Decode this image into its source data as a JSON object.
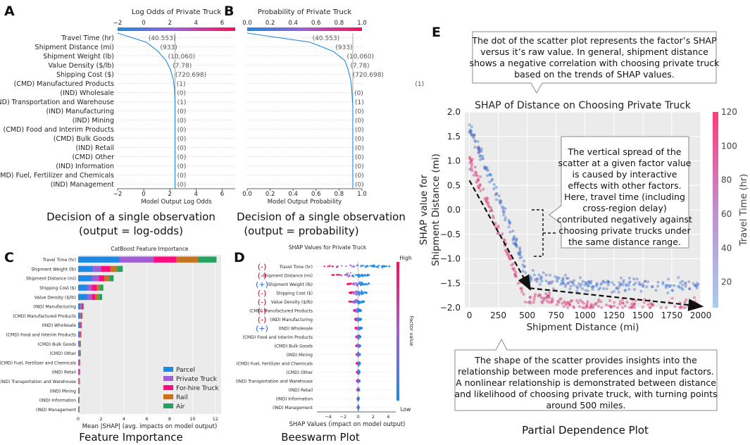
{
  "panels": {
    "A": {
      "letter": "A",
      "caption": [
        "Decision of a single observation",
        "(output = log-odds)"
      ]
    },
    "B": {
      "letter": "B",
      "caption": [
        "Decision of a single observation",
        "(output = probability)"
      ]
    },
    "C": {
      "letter": "C",
      "caption": [
        "Feature Importance"
      ]
    },
    "D": {
      "letter": "D",
      "caption": [
        "Beeswarm Plot"
      ]
    },
    "E": {
      "letter": "E",
      "caption": [
        "Partial Dependence Plot"
      ]
    }
  },
  "annotations": {
    "top": [
      "The dot of the scatter plot represents the factor’s SHAP",
      "versus it’s raw value. In general, shipment distance",
      "shows a negative correlation with choosing private truck",
      "based on the trends of SHAP values."
    ],
    "middle": [
      "The vertical spread of the",
      "scatter at a given factor value",
      "is caused by interactive",
      "effects with other factors.",
      "Here, travel time (including",
      "cross-region delay)",
      "contributed negatively against",
      "choosing private trucks under",
      "the same distance range."
    ],
    "bottom": [
      "The shape of the scatter provides insights into the",
      "relationship between mode preferences and input factors.",
      "A nonlinear relationship is demonstrated between distance",
      "and likelihood of choosing private truck, with turning points",
      "around 500 miles."
    ]
  },
  "colors": {
    "blue": "#1e88e5",
    "magenta": "#ff0d57",
    "parcel": "#1e88e5",
    "private_truck": "#a05fd4",
    "forhire_truck": "#ff0d7f",
    "rail": "#c7721f",
    "air": "#27a060",
    "grid_bg": "#ebebeb",
    "text": "#222222",
    "sign_neg": "#d0021b",
    "sign_pos": "#1a5fd0"
  },
  "chart_data": [
    {
      "id": "A",
      "type": "line",
      "title": "Log Odds of Private Truck",
      "xlabel": "Model Output Log Odds",
      "xlim": [
        -2,
        7
      ],
      "xticks": [
        -2,
        0,
        2,
        4,
        6
      ],
      "features": [
        "Travel Time (hr)",
        "Shipment Distance (mi)",
        "Shipment Weight (lb)",
        "Value Density ($/lb)",
        "Shipping Cost ($)",
        "(CMD) Manufactured Products",
        "(IND) Wholesale",
        "(IND) Transportation and Warehouse",
        "(IND) Manufacturing",
        "(IND) Mining",
        "(CMD) Food and Interim Products",
        "(CMD) Bulk Goods",
        "(IND) Retail",
        "(CMD) Other",
        "(IND) Information",
        "(CMD) Fuel, Fertilizer and Chemicals",
        "(IND) Management"
      ],
      "feature_values": [
        "(40.553)",
        "(933)",
        "(10,060)",
        "(7.78)",
        "(720.698)",
        "(1)",
        "(0)",
        "(1)",
        "(0)",
        "(0)",
        "(0)",
        "(0)",
        "(0)",
        "(0)",
        "(0)",
        "(0)",
        "(0)"
      ],
      "path": [
        -2.0,
        0.2,
        1.1,
        1.7,
        2.05,
        2.25,
        2.35,
        2.38,
        2.4,
        2.4,
        2.4,
        2.4,
        2.4,
        2.4,
        2.4,
        2.4,
        2.4,
        2.4
      ],
      "base": 2.4
    },
    {
      "id": "B",
      "type": "line",
      "title": "Probability of Private Truck",
      "xlabel": "Model Output Probability",
      "xlim": [
        0,
        1
      ],
      "xticks": [
        0.0,
        0.2,
        0.4,
        0.6,
        0.8,
        1.0
      ],
      "features": [
        "Travel Time (hr)",
        "Shipment Distance (mi)",
        "Shipment Weight (lb)",
        "Value Density ($/lb)",
        "Shipping Cost ($)",
        "(CMD) Manufactured Products",
        "(IND) Wholesale",
        "(IND) Transportation and Warehouse",
        "(IND) Manufacturing",
        "(IND) Mining",
        "(CMD) Food and Interim Products",
        "(CMD) Bulk Goods",
        "(IND) Retail",
        "(CMD) Other",
        "(IND) Information",
        "(CMD) Fuel, Fertilizer and Chemicals",
        "(IND) Management"
      ],
      "feature_values": [
        "(40.553)",
        "(933)",
        "(10,060)",
        "(7.78)",
        "(720.698)",
        "(1)",
        "(0)",
        "(1)",
        "(0)",
        "(0)",
        "(0)",
        "(0)",
        "(0)",
        "(0)",
        "(0)",
        "(0)",
        "(0)"
      ],
      "path": [
        0.0,
        0.55,
        0.75,
        0.85,
        0.88,
        0.9,
        0.91,
        0.915,
        0.92,
        0.92,
        0.92,
        0.92,
        0.92,
        0.92,
        0.92,
        0.92,
        0.92,
        0.92
      ],
      "base": 0.92
    },
    {
      "id": "C",
      "type": "bar",
      "title": "CatBoost Feature Importance",
      "xlabel": "Mean |SHAP| (avg. impacts on model output)",
      "xlim": [
        0,
        12.5
      ],
      "xticks": [
        0,
        2,
        4,
        6,
        8,
        10,
        12
      ],
      "categories": [
        "Travel Time (hr)",
        "Shipment Weight (lb)",
        "Shipment Distance (mi)",
        "Shipping Cost ($)",
        "Value Density ($/lb)",
        "(IND) Manufacturing",
        "(CMD) Manufactured Products",
        "(IND) Wholesale",
        "(CMD) Food and Interim Products",
        "(CMD) Bulk Goods",
        "(CMD) Other",
        "(CMD) Fuel, Fertilizer and Chemicals",
        "(IND) Retail",
        "(IND) Transportation and Warehouse",
        "(IND) Mining",
        "(IND) Information",
        "(IND) Management"
      ],
      "series": [
        {
          "name": "Parcel",
          "values": [
            3.6,
            1.3,
            1.2,
            0.8,
            0.8,
            0.2,
            0.15,
            0.12,
            0.1,
            0.08,
            0.08,
            0.06,
            0.06,
            0.05,
            0.04,
            0.03,
            0.03
          ]
        },
        {
          "name": "Private Truck",
          "values": [
            3.0,
            0.7,
            0.6,
            0.4,
            0.4,
            0.1,
            0.08,
            0.07,
            0.06,
            0.05,
            0.05,
            0.04,
            0.03,
            0.03,
            0.02,
            0.02,
            0.02
          ]
        },
        {
          "name": "For-hire Truck",
          "values": [
            2.0,
            0.8,
            0.5,
            0.4,
            0.3,
            0.1,
            0.08,
            0.08,
            0.06,
            0.05,
            0.05,
            0.04,
            0.03,
            0.03,
            0.02,
            0.02,
            0.02
          ]
        },
        {
          "name": "Rail",
          "values": [
            1.9,
            0.6,
            0.4,
            0.3,
            0.3,
            0.05,
            0.04,
            0.03,
            0.03,
            0.03,
            0.02,
            0.02,
            0.02,
            0.01,
            0.01,
            0.01,
            0.01
          ]
        },
        {
          "name": "Air",
          "values": [
            1.6,
            0.5,
            0.4,
            0.3,
            0.3,
            0.05,
            0.04,
            0.03,
            0.03,
            0.03,
            0.02,
            0.02,
            0.02,
            0.01,
            0.01,
            0.01,
            0.01
          ]
        }
      ]
    },
    {
      "id": "D",
      "type": "scatter",
      "title": "SHAP Values for Private Truck",
      "xlabel": "SHAP Values (impact on model output)",
      "xlim": [
        -5.5,
        5
      ],
      "xticks": [
        -4,
        -2,
        0,
        2,
        4
      ],
      "colorbar": {
        "label": "Factor value",
        "high": "High",
        "low": "Low"
      },
      "features": [
        "Travel Time (hr)",
        "Shipment Distance (mi)",
        "Shipment Weight (lb)",
        "Shipping Cost ($)",
        "Value Density ($/lb)",
        "(CMD) Manufactured Products",
        "(IND) Manufacturing",
        "(IND) Wholesale",
        "(CMD) Food and Interim Products",
        "(CMD) Bulk Goods",
        "(IND) Mining",
        "(CMD) Fuel, Fertilizer and Chemicals",
        "(CMD) Other",
        "(IND) Transportation and Warehouse",
        "(IND) Retail",
        "(IND) Information",
        "(IND) Management"
      ],
      "signs": [
        "(-)",
        "(-)",
        "(+)",
        "(-)",
        "(-)",
        "(-)",
        "(-)",
        "(+)",
        "",
        "",
        "",
        "",
        "",
        "",
        "",
        "",
        ""
      ],
      "spread": [
        [
          -4.5,
          4.2
        ],
        [
          -3.5,
          1.5
        ],
        [
          -1.5,
          1.5
        ],
        [
          -1.2,
          1.2
        ],
        [
          -1.2,
          0.8
        ],
        [
          -0.6,
          0.4
        ],
        [
          -0.5,
          0.4
        ],
        [
          -0.4,
          0.5
        ],
        [
          -0.3,
          0.3
        ],
        [
          -0.3,
          0.3
        ],
        [
          -0.25,
          0.25
        ],
        [
          -0.25,
          0.25
        ],
        [
          -0.2,
          0.2
        ],
        [
          -0.2,
          0.2
        ],
        [
          -0.15,
          0.15
        ],
        [
          -0.1,
          0.1
        ],
        [
          -0.1,
          0.1
        ]
      ]
    },
    {
      "id": "E",
      "type": "scatter",
      "title": "SHAP of Distance on Choosing Private Truck",
      "xlabel": "Shipment Distance (mi)",
      "ylabel": [
        "SHAP value for",
        "Shipment Distance (mi)"
      ],
      "xlim": [
        -40,
        2000
      ],
      "ylim": [
        -2.0,
        2.0
      ],
      "xticks": [
        0,
        250,
        500,
        750,
        1000,
        1250,
        1500,
        1750,
        2000
      ],
      "yticks": [
        2.0,
        1.5,
        1.0,
        0.5,
        0.0,
        -0.5,
        -1.0,
        -1.5,
        -2.0
      ],
      "colorbar": {
        "label": "Travel Time (hr)",
        "ticks": [
          20,
          40,
          60,
          80,
          100,
          120
        ],
        "range": [
          5,
          120
        ]
      },
      "trend_arrows": [
        {
          "from": [
            0,
            0.6
          ],
          "to": [
            520,
            -1.6
          ]
        },
        {
          "from": [
            520,
            -1.6
          ],
          "to": [
            2000,
            -1.97
          ]
        }
      ]
    }
  ]
}
